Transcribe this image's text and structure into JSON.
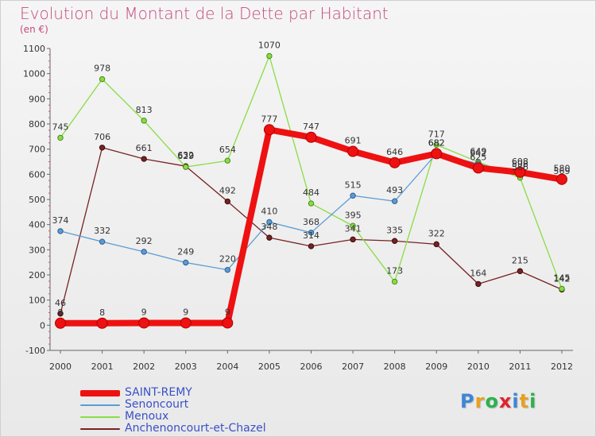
{
  "chart_data": {
    "type": "line",
    "title": "Evolution du Montant de la Dette par Habitant",
    "subtitle": "(en €)",
    "x": [
      "2000",
      "2001",
      "2002",
      "2003",
      "2004",
      "2005",
      "2006",
      "2007",
      "2008",
      "2009",
      "2010",
      "2011",
      "2012"
    ],
    "ylim": [
      -100,
      1100
    ],
    "yticks": [
      "-100",
      "0",
      "100",
      "200",
      "300",
      "400",
      "500",
      "600",
      "700",
      "800",
      "900",
      "1000",
      "1100"
    ],
    "grid": false,
    "legend_position": "bottom-left",
    "series": [
      {
        "name": "SAINT-REMY",
        "color": "#ee1111",
        "values": [
          8,
          8,
          9,
          9,
          9,
          777,
          747,
          691,
          646,
          682,
          625,
          608,
          580
        ],
        "labels": [
          "8",
          "8",
          "9",
          "9",
          "9",
          "777",
          "747",
          "691",
          "646",
          "682",
          "625",
          "608",
          "580"
        ]
      },
      {
        "name": "Senoncourt",
        "color": "#5b9bd5",
        "values": [
          374,
          332,
          292,
          249,
          220,
          410,
          368,
          515,
          493,
          682,
          642,
          598,
          569
        ],
        "labels": [
          "374",
          "332",
          "292",
          "249",
          "220",
          "410",
          "368",
          "515",
          "493",
          "682",
          "642",
          "598",
          "569"
        ]
      },
      {
        "name": "Menoux",
        "color": "#88dd44",
        "values": [
          745,
          978,
          813,
          629,
          654,
          1070,
          484,
          395,
          173,
          717,
          649,
          586,
          145
        ],
        "labels": [
          "745",
          "978",
          "813",
          "629",
          "654",
          "1070",
          "484",
          "395",
          "173",
          "717",
          "649",
          "586",
          "145"
        ]
      },
      {
        "name": "Anchenoncourt-et-Chazel",
        "color": "#772222",
        "values": [
          46,
          706,
          661,
          632,
          492,
          348,
          314,
          341,
          335,
          322,
          164,
          215,
          142
        ],
        "labels": [
          "46",
          "706",
          "661",
          "632",
          "492",
          "348",
          "314",
          "341",
          "335",
          "322",
          "164",
          "215",
          "142"
        ]
      }
    ]
  },
  "brand": {
    "text": "Proxiti",
    "letter_colors": [
      "#3d86d6",
      "#e8a020",
      "#2bb24c",
      "#e0242b",
      "#3d86d6",
      "#e8a020",
      "#2bb24c"
    ]
  }
}
